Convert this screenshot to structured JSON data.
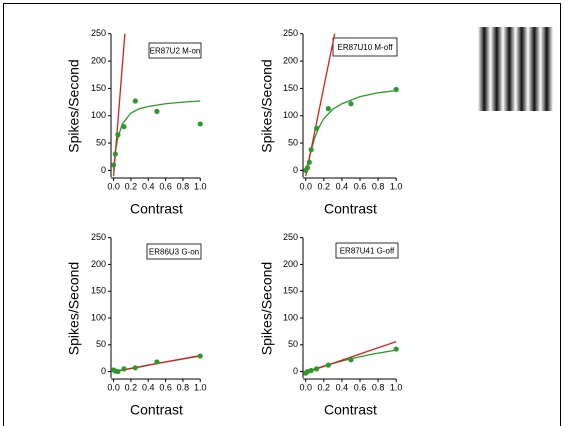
{
  "chart_data": [
    {
      "type": "scatter",
      "title": "ER87U2 M-on",
      "x_label": "Contrast",
      "y_label": "Spikes/Second",
      "xlim": [
        -0.03,
        1.02
      ],
      "ylim": [
        -12,
        255
      ],
      "xticks": [
        {
          "value": 0,
          "label": "0.0"
        },
        0.2,
        0.4,
        0.6,
        0.8,
        {
          "value": 1,
          "label": "1.0"
        }
      ],
      "yticks": [
        0,
        50,
        100,
        150,
        200,
        250
      ],
      "series": [
        {
          "mode": "markers",
          "color": "#2a9a2a",
          "x": [
            0,
            0.02,
            0.05,
            0.12,
            0.25,
            0.5,
            1.0
          ],
          "values": [
            10,
            30,
            65,
            80,
            127,
            108,
            85
          ]
        },
        {
          "mode": "line",
          "color": "#2a9a2a",
          "x": [
            0,
            0.02,
            0.05,
            0.1,
            0.2,
            0.3,
            0.4,
            0.6,
            0.8,
            1.0
          ],
          "values": [
            0,
            35,
            60,
            85,
            105,
            113,
            117,
            122,
            125,
            127
          ]
        },
        {
          "mode": "line",
          "color": "#d42020",
          "x": [
            0,
            0.13
          ],
          "values": [
            -10,
            250
          ]
        }
      ]
    },
    {
      "type": "scatter",
      "title": "ER87U10 M-off",
      "x_label": "Contrast",
      "y_label": "Spikes/Second",
      "xlim": [
        -0.03,
        1.02
      ],
      "ylim": [
        -12,
        255
      ],
      "xticks": [
        {
          "value": 0,
          "label": "0.0"
        },
        0.2,
        0.4,
        0.6,
        0.8,
        {
          "value": 1,
          "label": "1.0"
        }
      ],
      "yticks": [
        0,
        50,
        100,
        150,
        200,
        250
      ],
      "series": [
        {
          "mode": "markers",
          "color": "#2a9a2a",
          "x": [
            0,
            0.02,
            0.04,
            0.06,
            0.12,
            0.25,
            0.5,
            1.0
          ],
          "values": [
            0,
            5,
            15,
            38,
            77,
            113,
            122,
            148
          ]
        },
        {
          "mode": "line",
          "color": "#2a9a2a",
          "x": [
            0,
            0.02,
            0.05,
            0.1,
            0.15,
            0.2,
            0.3,
            0.4,
            0.6,
            0.8,
            1.0
          ],
          "values": [
            0,
            10,
            30,
            60,
            80,
            95,
            112,
            122,
            135,
            142,
            146
          ]
        },
        {
          "mode": "line",
          "color": "#d42020",
          "x": [
            0,
            0.32
          ],
          "values": [
            -10,
            250
          ]
        }
      ]
    },
    {
      "type": "scatter",
      "title": "ER86U3 G-on",
      "x_label": "Contrast",
      "y_label": "Spikes/Second",
      "xlim": [
        -0.03,
        1.02
      ],
      "ylim": [
        -12,
        255
      ],
      "xticks": [
        {
          "value": 0,
          "label": "0.0"
        },
        0.2,
        0.4,
        0.6,
        0.8,
        {
          "value": 1,
          "label": "1.0"
        }
      ],
      "yticks": [
        0,
        50,
        100,
        150,
        200,
        250
      ],
      "series": [
        {
          "mode": "markers",
          "color": "#2a9a2a",
          "x": [
            0,
            0.02,
            0.05,
            0.12,
            0.25,
            0.5,
            1.0
          ],
          "values": [
            3,
            1,
            0,
            5,
            7,
            18,
            29
          ]
        },
        {
          "mode": "line",
          "color": "#2a9a2a",
          "x": [
            0,
            0.25,
            0.5,
            1.0
          ],
          "values": [
            0,
            7,
            15,
            29
          ]
        },
        {
          "mode": "line",
          "color": "#d42020",
          "x": [
            0,
            1.0
          ],
          "values": [
            0,
            30
          ]
        }
      ]
    },
    {
      "type": "scatter",
      "title": "ER87U41 G-off",
      "x_label": "Contrast",
      "y_label": "Spikes/Second",
      "xlim": [
        -0.03,
        1.02
      ],
      "ylim": [
        -12,
        255
      ],
      "xticks": [
        {
          "value": 0,
          "label": "0.0"
        },
        0.2,
        0.4,
        0.6,
        0.8,
        {
          "value": 1,
          "label": "1.0"
        }
      ],
      "yticks": [
        0,
        50,
        100,
        150,
        200,
        250
      ],
      "series": [
        {
          "mode": "markers",
          "color": "#2a9a2a",
          "x": [
            0,
            0.02,
            0.06,
            0.12,
            0.25,
            0.5,
            1.0
          ],
          "values": [
            -3,
            0,
            2,
            5,
            12,
            22,
            42
          ]
        },
        {
          "mode": "line",
          "color": "#2a9a2a",
          "x": [
            0,
            0.1,
            0.25,
            0.5,
            0.75,
            1.0
          ],
          "values": [
            0,
            5,
            13,
            24,
            33,
            40
          ]
        },
        {
          "mode": "line",
          "color": "#d42020",
          "x": [
            0,
            1.0
          ],
          "values": [
            -2,
            56
          ]
        }
      ]
    }
  ]
}
